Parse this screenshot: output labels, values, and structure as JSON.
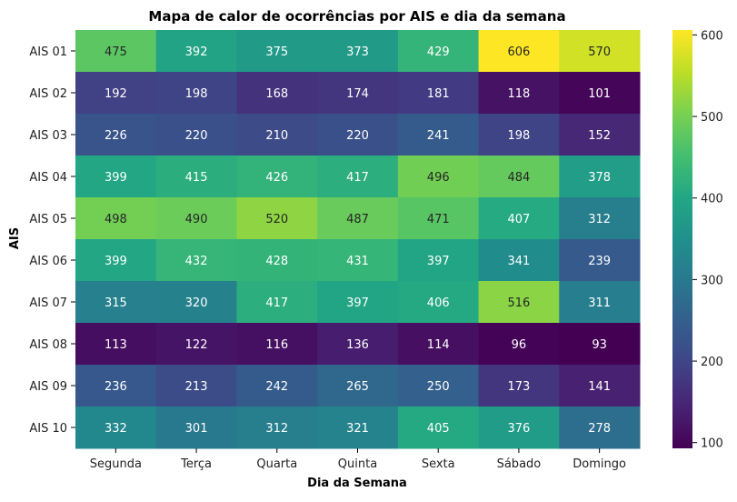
{
  "chart_data": {
    "type": "heatmap",
    "title": "Mapa de calor de ocorrências por AIS e dia da semana",
    "xlabel": "Dia da Semana",
    "ylabel": "AIS",
    "x": [
      "Segunda",
      "Terça",
      "Quarta",
      "Quinta",
      "Sexta",
      "Sábado",
      "Domingo"
    ],
    "y": [
      "AIS 01",
      "AIS 02",
      "AIS 03",
      "AIS 04",
      "AIS 05",
      "AIS 06",
      "AIS 07",
      "AIS 08",
      "AIS 09",
      "AIS 10"
    ],
    "values": [
      [
        475,
        392,
        375,
        373,
        429,
        606,
        570
      ],
      [
        192,
        198,
        168,
        174,
        181,
        118,
        101
      ],
      [
        226,
        220,
        210,
        220,
        241,
        198,
        152
      ],
      [
        399,
        415,
        426,
        417,
        496,
        484,
        378
      ],
      [
        498,
        490,
        520,
        487,
        471,
        407,
        312
      ],
      [
        399,
        432,
        428,
        431,
        397,
        341,
        239
      ],
      [
        315,
        320,
        417,
        397,
        406,
        516,
        311
      ],
      [
        113,
        122,
        116,
        136,
        114,
        96,
        93
      ],
      [
        236,
        213,
        242,
        265,
        250,
        173,
        141
      ],
      [
        332,
        301,
        312,
        321,
        405,
        376,
        278
      ]
    ],
    "colormap": "viridis",
    "vmin": 93,
    "vmax": 606,
    "colorbar_ticks": [
      100,
      200,
      300,
      400,
      500,
      600
    ],
    "colorbar_labels": [
      "100",
      "200",
      "300",
      "400",
      "500",
      "600"
    ],
    "annotated": true,
    "grid": false
  }
}
